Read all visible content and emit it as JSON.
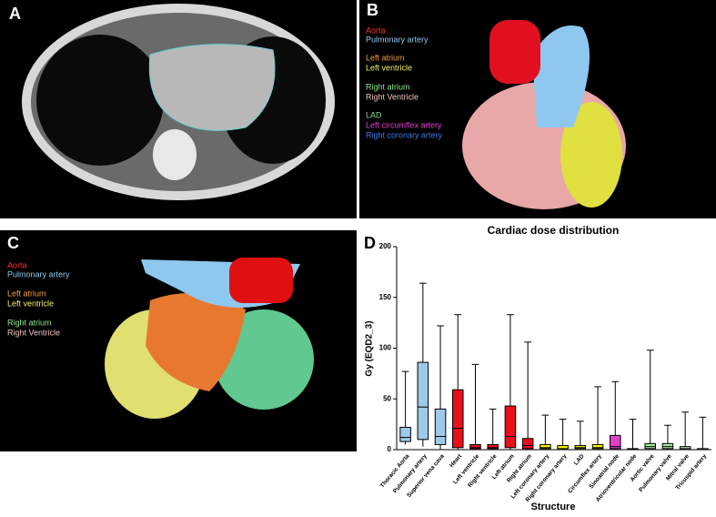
{
  "panels": {
    "a": {
      "label": "A"
    },
    "b": {
      "label": "B",
      "legend": [
        {
          "text": "Aorta",
          "color": "#ff3030"
        },
        {
          "text": "Pulmonary artery",
          "color": "#8fc8ee"
        },
        {
          "text": "Left atrium",
          "color": "#f0a040"
        },
        {
          "text": "Left ventricle",
          "color": "#f0f070"
        },
        {
          "text": "Right atrium",
          "color": "#90e890"
        },
        {
          "text": "Right Ventricle",
          "color": "#f0c0c0"
        },
        {
          "text": "LAD",
          "color": "#7ad87a"
        },
        {
          "text": "Left circumflex artery",
          "color": "#e040d0"
        },
        {
          "text": "Right coronary artery",
          "color": "#3a7ae0"
        }
      ]
    },
    "c": {
      "label": "C",
      "legend": [
        {
          "text": "Aorta",
          "color": "#ff3030"
        },
        {
          "text": "Pulmonary artery",
          "color": "#8fc8ee"
        },
        {
          "text": "Left atrium",
          "color": "#f0a040"
        },
        {
          "text": "Left ventricle",
          "color": "#f0f070"
        },
        {
          "text": "Right atrium",
          "color": "#90e890"
        },
        {
          "text": "Right Ventricle",
          "color": "#f0c0c0"
        }
      ]
    },
    "d": {
      "label": "D"
    }
  },
  "chart_data": {
    "type": "box",
    "title": "Cardiac dose distribution",
    "x_label": "Structure",
    "y_label": "Gy (EQD2_3)",
    "categories": [
      "Thoracic Aorta",
      "Pulmonary artery",
      "Superior vena cava",
      "Heart",
      "Left ventricle",
      "Right ventricle",
      "Left atrium",
      "Right atrium",
      "Left coronary artery",
      "Right coronary artery",
      "LAD",
      "Circumflex artery",
      "Sinoatrial node",
      "Atrioventricular node",
      "Aortic valve",
      "Pulmonary valve",
      "Mitral valve",
      "Tricuspid artery"
    ],
    "min": [
      5,
      3,
      0,
      0,
      0,
      0,
      0,
      0,
      0,
      0,
      0,
      0,
      0,
      0,
      0,
      0,
      0,
      0
    ],
    "q1": [
      8,
      10,
      5,
      2,
      1,
      1,
      2,
      1,
      1,
      0,
      1,
      1,
      1,
      0,
      1,
      1,
      0,
      0
    ],
    "median": [
      12,
      42,
      13,
      21,
      2,
      2,
      13,
      4,
      2,
      1,
      2,
      2,
      3,
      0.5,
      3,
      3,
      1,
      0
    ],
    "q3": [
      22,
      86,
      40,
      59,
      5,
      5,
      43,
      11,
      5,
      4,
      4,
      5,
      14,
      1,
      6,
      6,
      3,
      1
    ],
    "max": [
      77,
      164,
      122,
      133,
      84,
      40,
      133,
      106,
      34,
      30,
      28,
      62,
      67,
      30,
      98,
      24,
      37,
      32
    ],
    "colors": [
      "#9ecae9",
      "#9ecae9",
      "#9ecae9",
      "#e8101a",
      "#e8101a",
      "#e8101a",
      "#e8101a",
      "#e8101a",
      "#f5f000",
      "#f5f000",
      "#f5f000",
      "#f5f000",
      "#e040c8",
      "#f5f000",
      "#a8e8a0",
      "#a8e8a0",
      "#a8e8a0",
      "#a8e8a0"
    ],
    "ylim": [
      0,
      200
    ],
    "yticks": [
      0,
      50,
      100,
      150,
      200
    ]
  }
}
